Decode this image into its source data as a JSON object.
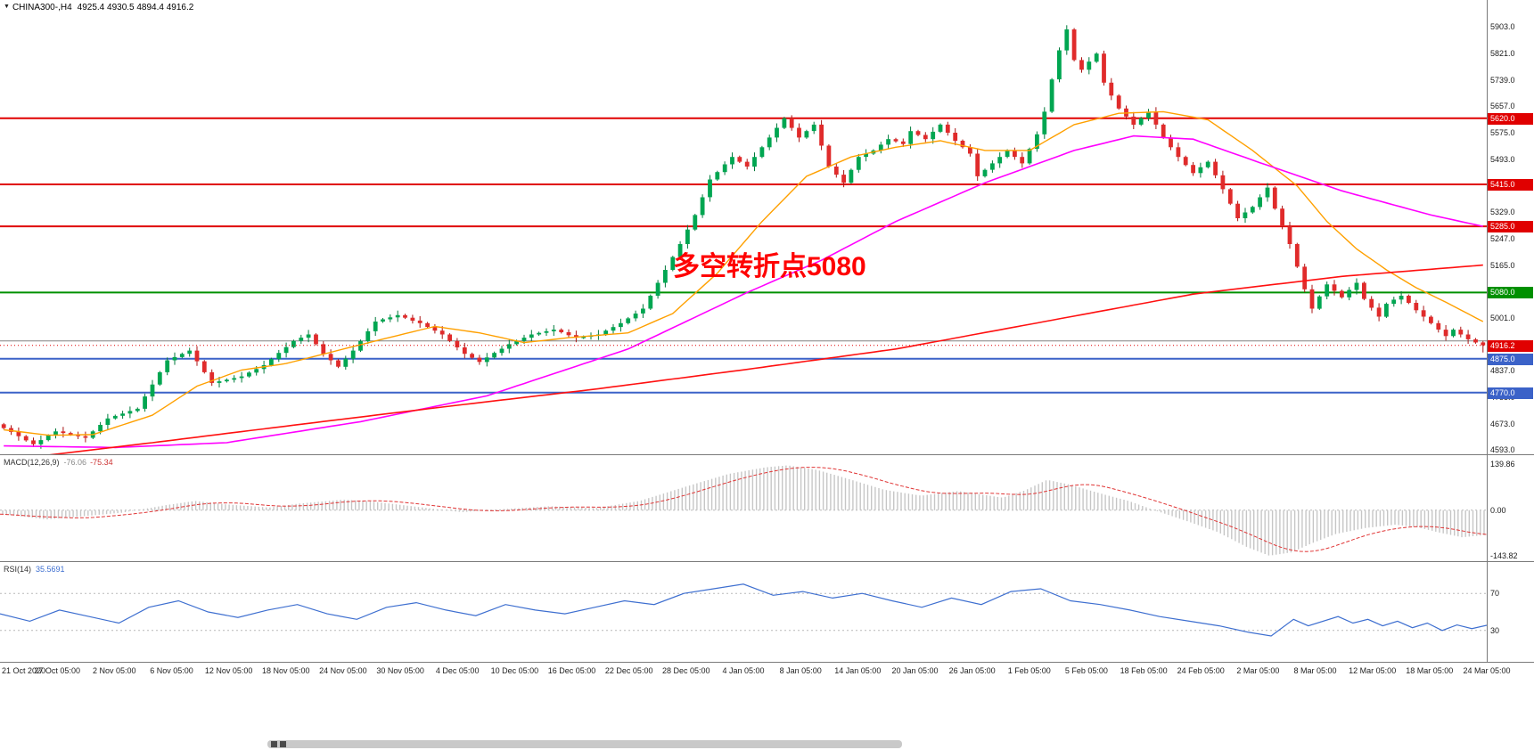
{
  "header": {
    "dropdown_icon": "▼",
    "symbol": "CHINA300-,H4",
    "ohlc": "4925.4 4930.5 4894.4 4916.2"
  },
  "annotation": {
    "text": "多空转折点5080",
    "color": "#FF0000"
  },
  "colors": {
    "up": "#00A651",
    "down": "#E02B2B",
    "up_wick": "#007A3B",
    "down_wick": "#A81414",
    "hist": "#C6C6C6",
    "signal": "#E03535",
    "rsi_line": "#3E6FD0",
    "grid": "#B8B8B8"
  },
  "chart_data": [
    {
      "type": "candlestick",
      "symbol": "CHINA300-",
      "timeframe": "H4",
      "first_open": 4672,
      "closes": [
        4660,
        4648,
        4635,
        4622,
        4610,
        4623,
        4637,
        4650,
        4645,
        4640,
        4635,
        4630,
        4650,
        4670,
        4690,
        4698,
        4705,
        4713,
        4720,
        4758,
        4795,
        4833,
        4870,
        4880,
        4890,
        4900,
        4867,
        4833,
        4800,
        4805,
        4810,
        4815,
        4820,
        4832,
        4843,
        4855,
        4874,
        4893,
        4911,
        4930,
        4940,
        4950,
        4920,
        4890,
        4870,
        4850,
        4875,
        4900,
        4930,
        4960,
        4990,
        4997,
        5003,
        5010,
        5002,
        4993,
        4985,
        4973,
        4962,
        4950,
        4930,
        4910,
        4890,
        4878,
        4865,
        4879,
        4893,
        4906,
        4920,
        4930,
        4940,
        4950,
        4955,
        4960,
        4965,
        4957,
        4948,
        4940,
        4943,
        4947,
        4950,
        4962,
        4973,
        4985,
        5000,
        5015,
        5030,
        5070,
        5110,
        5150,
        5190,
        5230,
        5275,
        5320,
        5375,
        5430,
        5453,
        5477,
        5500,
        5485,
        5470,
        5500,
        5530,
        5560,
        5590,
        5620,
        5590,
        5560,
        5580,
        5600,
        5535,
        5470,
        5445,
        5420,
        5460,
        5500,
        5510,
        5520,
        5538,
        5555,
        5548,
        5540,
        5580,
        5568,
        5555,
        5578,
        5600,
        5575,
        5550,
        5530,
        5510,
        5440,
        5460,
        5480,
        5500,
        5520,
        5500,
        5480,
        5525,
        5570,
        5640,
        5740,
        5830,
        5895,
        5800,
        5770,
        5795,
        5820,
        5730,
        5690,
        5650,
        5625,
        5600,
        5620,
        5640,
        5600,
        5560,
        5530,
        5500,
        5475,
        5450,
        5468,
        5485,
        5443,
        5400,
        5355,
        5310,
        5328,
        5345,
        5375,
        5405,
        5340,
        5285,
        5230,
        5160,
        5090,
        5030,
        5068,
        5105,
        5085,
        5065,
        5088,
        5110,
        5060,
        5033,
        5005,
        5045,
        5058,
        5070,
        5048,
        5025,
        5005,
        4985,
        4965,
        4945,
        4965,
        4950,
        4935,
        4925.4,
        4916.2
      ],
      "last_ohlc": {
        "open": 4925.4,
        "high": 4930.5,
        "low": 4894.4,
        "close": 4916.2
      },
      "current_price": {
        "value": 4916.2,
        "label": "4916.2",
        "color": "#E00000"
      },
      "levels": [
        {
          "price": 5620.0,
          "label": "5620.0",
          "color": "#E00000",
          "width": 2,
          "badge": true
        },
        {
          "price": 5415.0,
          "label": "5415.0",
          "color": "#E00000",
          "width": 2,
          "badge": true
        },
        {
          "price": 5285.0,
          "label": "5285.0",
          "color": "#E00000",
          "width": 2,
          "badge": true
        },
        {
          "price": 5080.0,
          "label": "5080.0",
          "color": "#009000",
          "width": 2,
          "badge": true
        },
        {
          "price": 4930.0,
          "label": "",
          "color": "#808080",
          "width": 1,
          "badge": false
        },
        {
          "price": 4875.0,
          "label": "4875.0",
          "color": "#3B62C8",
          "width": 2,
          "badge": true
        },
        {
          "price": 4770.0,
          "label": "4770.0",
          "color": "#3B62C8",
          "width": 2,
          "badge": true
        }
      ],
      "y_ticks": [
        5903.0,
        5821.0,
        5739.0,
        5657.0,
        5575.0,
        5493.0,
        5411.0,
        5329.0,
        5247.0,
        5165.0,
        5083.0,
        5001.0,
        4919.0,
        4837.0,
        4755.0,
        4673.0,
        4593.0
      ],
      "moving_averages": [
        {
          "name": "ma-fast-orange",
          "color": "#FFA000",
          "width": 1.4,
          "points": [
            [
              0,
              4655
            ],
            [
              6,
              4638
            ],
            [
              12,
              4640
            ],
            [
              20,
              4700
            ],
            [
              26,
              4790
            ],
            [
              32,
              4840
            ],
            [
              38,
              4860
            ],
            [
              44,
              4895
            ],
            [
              50,
              4930
            ],
            [
              58,
              4975
            ],
            [
              64,
              4955
            ],
            [
              70,
              4925
            ],
            [
              76,
              4940
            ],
            [
              84,
              4955
            ],
            [
              90,
              5015
            ],
            [
              96,
              5140
            ],
            [
              102,
              5300
            ],
            [
              108,
              5440
            ],
            [
              114,
              5500
            ],
            [
              120,
              5530
            ],
            [
              126,
              5550
            ],
            [
              132,
              5520
            ],
            [
              138,
              5520
            ],
            [
              144,
              5600
            ],
            [
              150,
              5635
            ],
            [
              156,
              5640
            ],
            [
              162,
              5615
            ],
            [
              168,
              5520
            ],
            [
              174,
              5410
            ],
            [
              178,
              5300
            ],
            [
              182,
              5215
            ],
            [
              186,
              5150
            ],
            [
              190,
              5095
            ],
            [
              194,
              5050
            ],
            [
              199,
              4990
            ]
          ]
        },
        {
          "name": "ma-mid-magenta",
          "color": "#FF00FF",
          "width": 1.6,
          "points": [
            [
              0,
              4605
            ],
            [
              15,
              4600
            ],
            [
              30,
              4615
            ],
            [
              48,
              4680
            ],
            [
              65,
              4760
            ],
            [
              84,
              4905
            ],
            [
              100,
              5080
            ],
            [
              110,
              5180
            ],
            [
              120,
              5300
            ],
            [
              132,
              5420
            ],
            [
              144,
              5520
            ],
            [
              152,
              5565
            ],
            [
              160,
              5555
            ],
            [
              168,
              5490
            ],
            [
              180,
              5395
            ],
            [
              192,
              5320
            ],
            [
              199,
              5285
            ]
          ]
        },
        {
          "name": "ma-slow-red",
          "color": "#FF1010",
          "width": 1.6,
          "points": [
            [
              0,
              4560
            ],
            [
              20,
              4615
            ],
            [
              40,
              4672
            ],
            [
              60,
              4728
            ],
            [
              80,
              4782
            ],
            [
              100,
              4842
            ],
            [
              120,
              4905
            ],
            [
              140,
              4990
            ],
            [
              160,
              5075
            ],
            [
              180,
              5130
            ],
            [
              199,
              5165
            ]
          ]
        }
      ]
    },
    {
      "type": "bar",
      "label_name": "MACD(12,26,9)",
      "value_main": "-76.06",
      "value_signal": "-75.34",
      "ticks": [
        "139.86",
        "0.00",
        "-143.82"
      ],
      "tick_values": [
        139.86,
        0,
        -143.82
      ],
      "points": [
        [
          0,
          -12
        ],
        [
          0.03,
          -28
        ],
        [
          0.05,
          -20
        ],
        [
          0.08,
          -8
        ],
        [
          0.11,
          15
        ],
        [
          0.13,
          28
        ],
        [
          0.15,
          18
        ],
        [
          0.18,
          8
        ],
        [
          0.2,
          20
        ],
        [
          0.23,
          32
        ],
        [
          0.25,
          26
        ],
        [
          0.28,
          10
        ],
        [
          0.31,
          -6
        ],
        [
          0.34,
          4
        ],
        [
          0.37,
          12
        ],
        [
          0.4,
          6
        ],
        [
          0.43,
          28
        ],
        [
          0.46,
          70
        ],
        [
          0.49,
          110
        ],
        [
          0.515,
          130
        ],
        [
          0.53,
          136
        ],
        [
          0.55,
          122
        ],
        [
          0.57,
          96
        ],
        [
          0.595,
          62
        ],
        [
          0.62,
          44
        ],
        [
          0.645,
          58
        ],
        [
          0.66,
          48
        ],
        [
          0.675,
          38
        ],
        [
          0.69,
          60
        ],
        [
          0.705,
          92
        ],
        [
          0.72,
          78
        ],
        [
          0.74,
          52
        ],
        [
          0.76,
          28
        ],
        [
          0.78,
          -4
        ],
        [
          0.8,
          -34
        ],
        [
          0.82,
          -66
        ],
        [
          0.84,
          -112
        ],
        [
          0.855,
          -138
        ],
        [
          0.87,
          -128
        ],
        [
          0.885,
          -98
        ],
        [
          0.9,
          -72
        ],
        [
          0.92,
          -54
        ],
        [
          0.94,
          -44
        ],
        [
          0.955,
          -52
        ],
        [
          0.97,
          -68
        ],
        [
          0.985,
          -82
        ],
        [
          1,
          -76
        ]
      ]
    },
    {
      "type": "line",
      "label_name": "RSI(14)",
      "value": "35.5691",
      "levels": [
        70,
        30
      ],
      "points": [
        [
          0,
          48
        ],
        [
          0.02,
          40
        ],
        [
          0.04,
          52
        ],
        [
          0.06,
          45
        ],
        [
          0.08,
          38
        ],
        [
          0.1,
          55
        ],
        [
          0.12,
          62
        ],
        [
          0.14,
          50
        ],
        [
          0.16,
          44
        ],
        [
          0.18,
          52
        ],
        [
          0.2,
          58
        ],
        [
          0.22,
          48
        ],
        [
          0.24,
          42
        ],
        [
          0.26,
          55
        ],
        [
          0.28,
          60
        ],
        [
          0.3,
          52
        ],
        [
          0.32,
          46
        ],
        [
          0.34,
          58
        ],
        [
          0.36,
          52
        ],
        [
          0.38,
          48
        ],
        [
          0.4,
          55
        ],
        [
          0.42,
          62
        ],
        [
          0.44,
          58
        ],
        [
          0.46,
          70
        ],
        [
          0.48,
          75
        ],
        [
          0.5,
          80
        ],
        [
          0.52,
          68
        ],
        [
          0.54,
          72
        ],
        [
          0.56,
          65
        ],
        [
          0.58,
          70
        ],
        [
          0.6,
          62
        ],
        [
          0.62,
          55
        ],
        [
          0.64,
          65
        ],
        [
          0.66,
          58
        ],
        [
          0.68,
          72
        ],
        [
          0.7,
          75
        ],
        [
          0.72,
          62
        ],
        [
          0.74,
          58
        ],
        [
          0.76,
          52
        ],
        [
          0.78,
          45
        ],
        [
          0.8,
          40
        ],
        [
          0.82,
          35
        ],
        [
          0.84,
          28
        ],
        [
          0.855,
          24
        ],
        [
          0.87,
          42
        ],
        [
          0.88,
          35
        ],
        [
          0.9,
          45
        ],
        [
          0.91,
          38
        ],
        [
          0.92,
          42
        ],
        [
          0.93,
          35
        ],
        [
          0.94,
          40
        ],
        [
          0.95,
          33
        ],
        [
          0.96,
          38
        ],
        [
          0.97,
          30
        ],
        [
          0.98,
          36
        ],
        [
          0.99,
          32
        ],
        [
          1,
          35.57
        ]
      ]
    }
  ],
  "time_axis_labels": [
    "21 Oct 2020",
    "27 Oct 05:00",
    "2 Nov 05:00",
    "6 Nov 05:00",
    "12 Nov 05:00",
    "18 Nov 05:00",
    "24 Nov 05:00",
    "30 Nov 05:00",
    "4 Dec 05:00",
    "10 Dec 05:00",
    "16 Dec 05:00",
    "22 Dec 05:00",
    "28 Dec 05:00",
    "4 Jan 05:00",
    "8 Jan 05:00",
    "14 Jan 05:00",
    "20 Jan 05:00",
    "26 Jan 05:00",
    "1 Feb 05:00",
    "5 Feb 05:00",
    "18 Feb 05:00",
    "24 Feb 05:00",
    "2 Mar 05:00",
    "8 Mar 05:00",
    "12 Mar 05:00",
    "18 Mar 05:00",
    "24 Mar 05:00"
  ]
}
